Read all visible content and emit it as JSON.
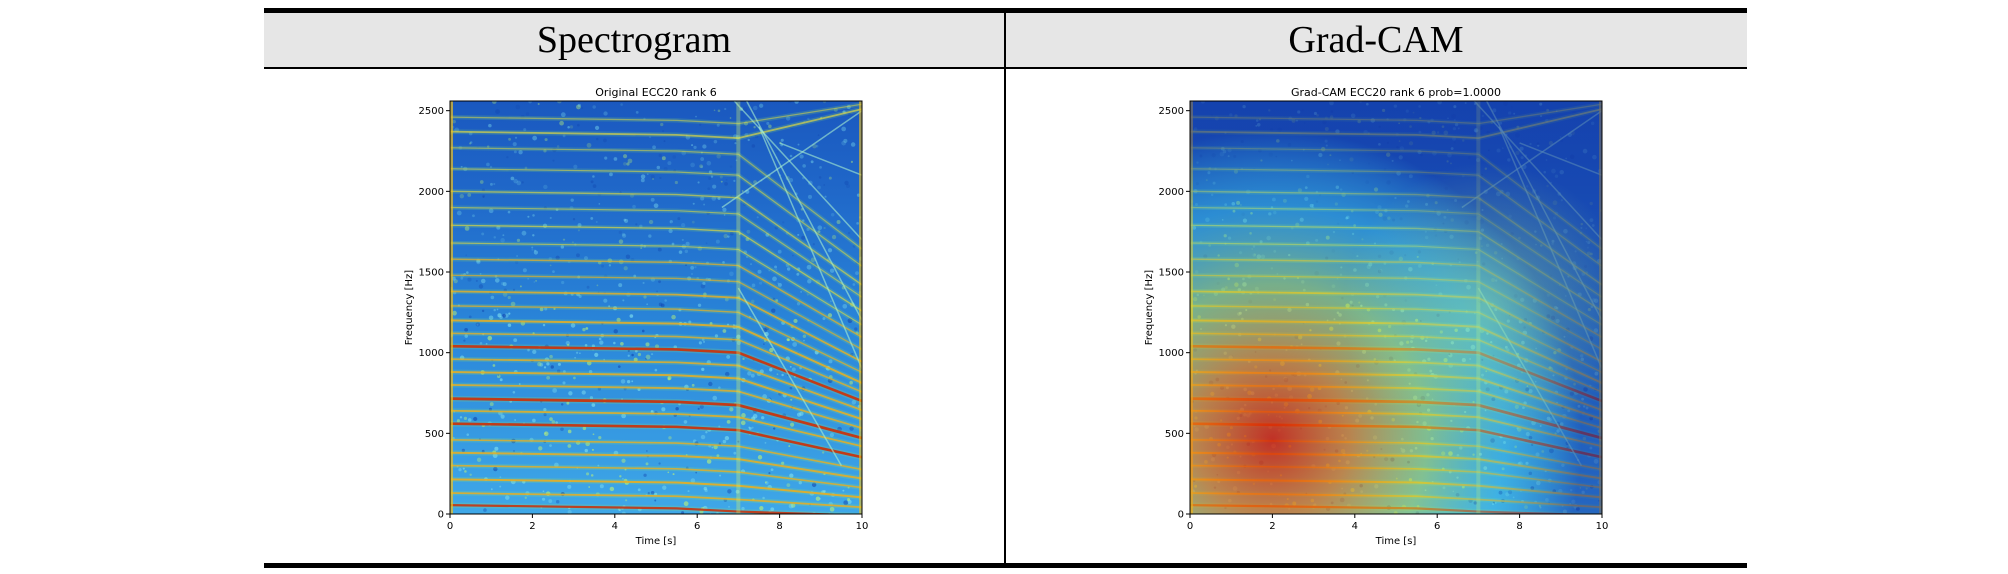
{
  "columns": {
    "left_header": "Spectrogram",
    "right_header": "Grad-CAM"
  },
  "chart_data": [
    {
      "type": "heatmap",
      "title": "Original ECC20 rank 6",
      "xlabel": "Time [s]",
      "ylabel": "Frequency [Hz]",
      "xlim": [
        0,
        10
      ],
      "ylim": [
        0,
        2560
      ],
      "xticks": [
        "0",
        "2",
        "4",
        "6",
        "8",
        "10"
      ],
      "yticks": [
        "0",
        "500",
        "1000",
        "1500",
        "2000",
        "2500"
      ],
      "colormap": "jet"
    },
    {
      "type": "heatmap",
      "title": "Grad-CAM ECC20 rank 6 prob=1.0000",
      "xlabel": "Time [s]",
      "ylabel": "Frequency [Hz]",
      "xlim": [
        0,
        10
      ],
      "ylim": [
        0,
        2560
      ],
      "xticks": [
        "0",
        "2",
        "4",
        "6",
        "8",
        "10"
      ],
      "yticks": [
        "0",
        "500",
        "1000",
        "1500",
        "2000",
        "2500"
      ],
      "colormap": "jet"
    }
  ]
}
